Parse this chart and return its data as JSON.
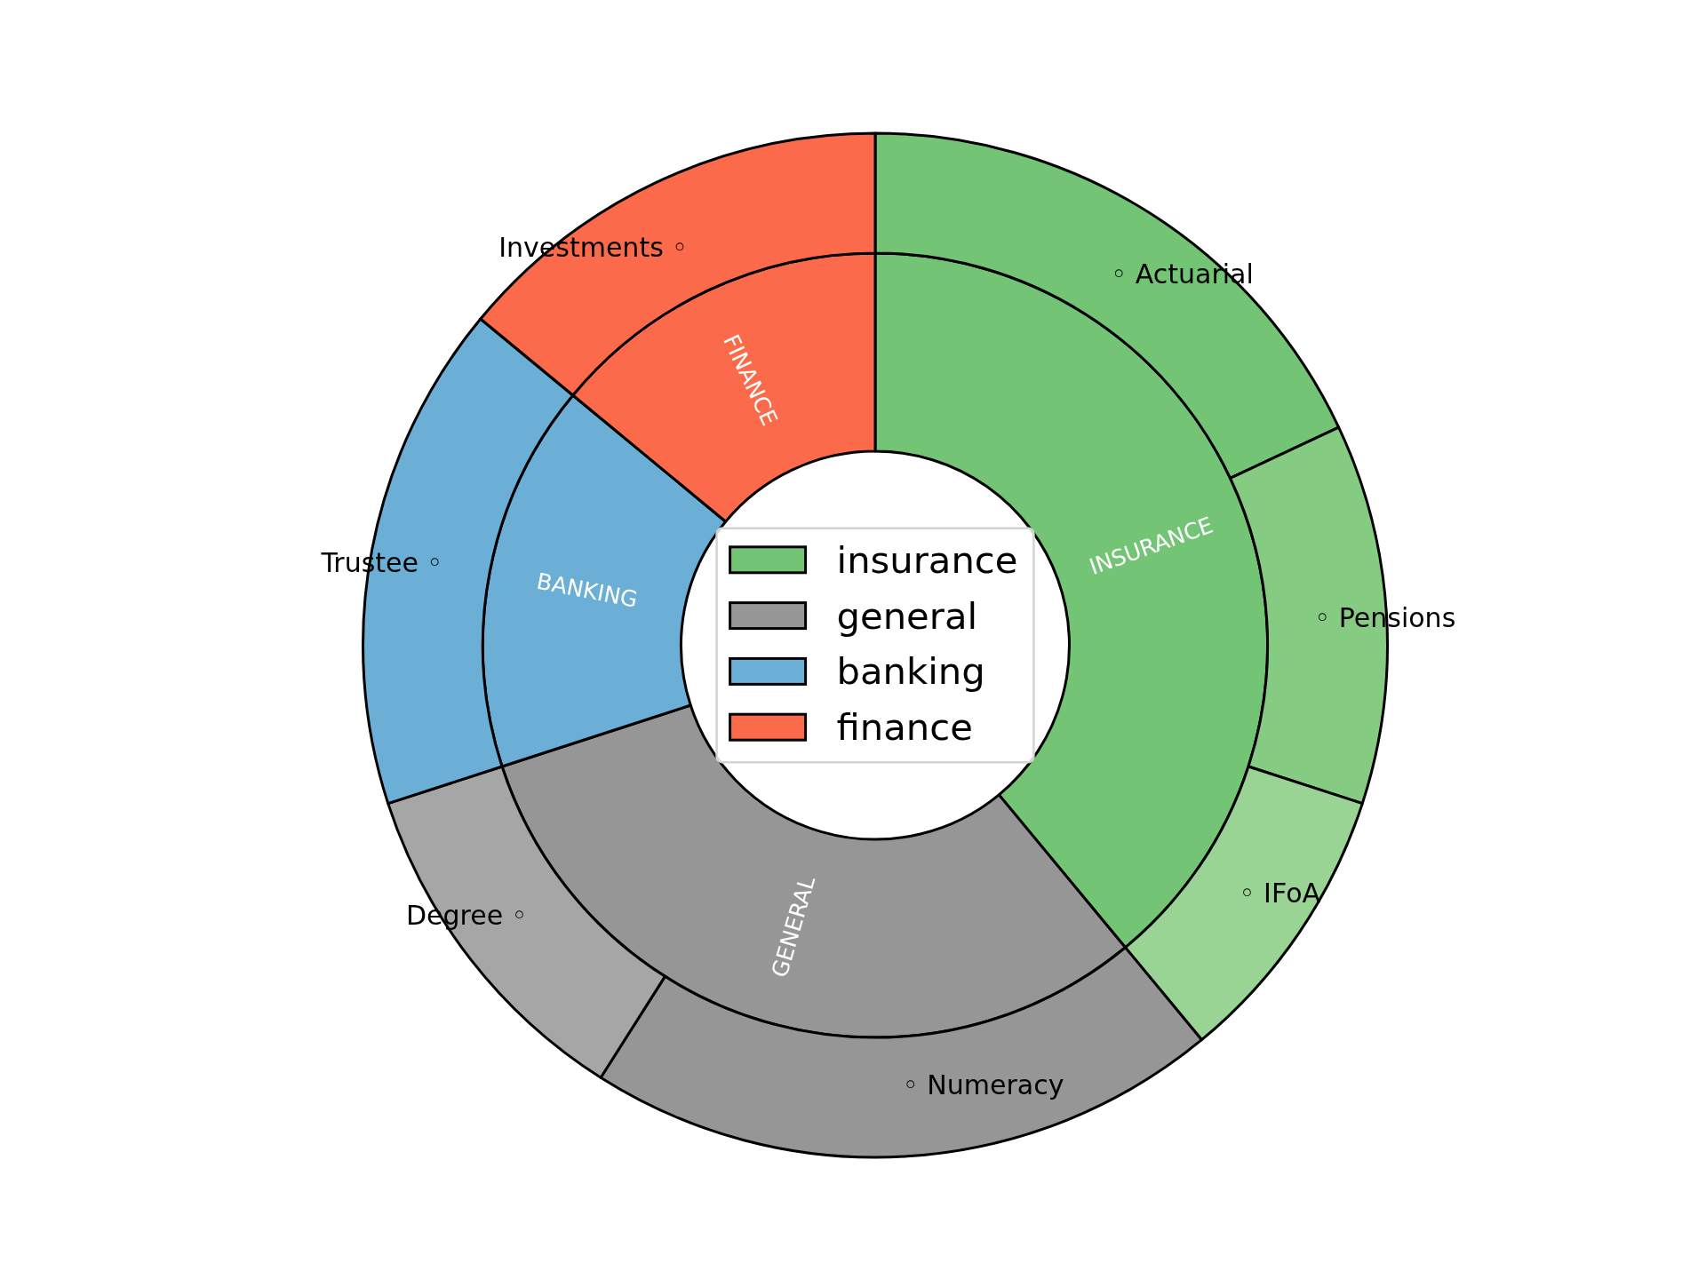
{
  "chart_data": [
    {
      "type": "donut",
      "categories": [
        "insurance",
        "general",
        "banking",
        "finance"
      ],
      "values": [
        39,
        31,
        16,
        14
      ],
      "colors": [
        "#74c476",
        "#969696",
        "#6baed6",
        "#fb6a4a"
      ],
      "value_labels": [
        "INSURANCE",
        "GENERAL",
        "BANKING",
        "FINANCE"
      ],
      "legend": "center"
    },
    {
      "type": "donut",
      "categories": [
        "◦ Actuarial",
        "◦ Pensions",
        "◦ IFoA",
        "◦ Numeracy",
        "Degree ◦",
        "Trustee ◦",
        "Investments ◦"
      ],
      "values": [
        18,
        12,
        9,
        20,
        11,
        16,
        14
      ],
      "colors": [
        "#74c476",
        "#86cb82",
        "#9ad494",
        "#969696",
        "#a6a6a6",
        "#6baed6",
        "#fb6a4a"
      ]
    }
  ]
}
